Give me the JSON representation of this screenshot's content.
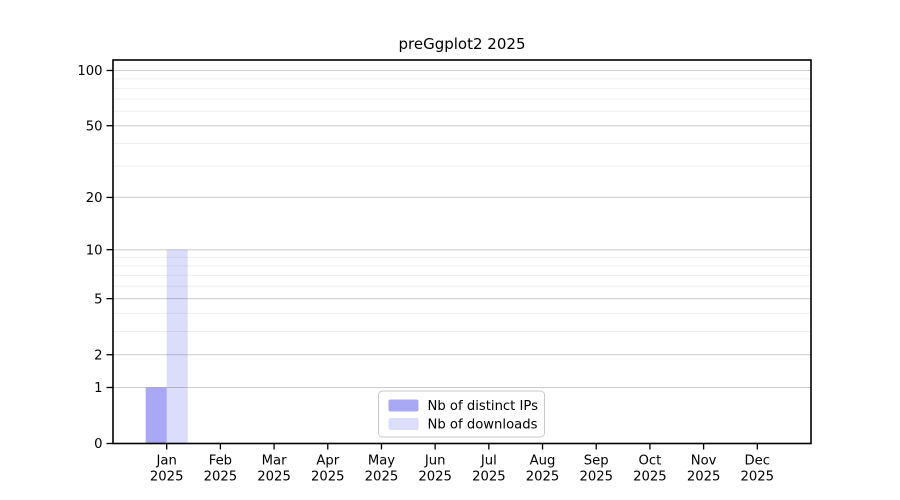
{
  "chart_data": {
    "type": "bar",
    "title": "preGgplot2 2025",
    "categories": [
      "Jan",
      "Feb",
      "Mar",
      "Apr",
      "May",
      "Jun",
      "Jul",
      "Aug",
      "Sep",
      "Oct",
      "Nov",
      "Dec"
    ],
    "category_year": "2025",
    "series": [
      {
        "name": "Nb of distinct IPs",
        "color": "#a8a8f3",
        "fill": "rgba(30,30,230,0.39)",
        "values": [
          1,
          0,
          0,
          0,
          0,
          0,
          0,
          0,
          0,
          0,
          0,
          0
        ]
      },
      {
        "name": "Nb of downloads",
        "color": "#dcdcf9",
        "fill": "rgba(30,30,230,0.155)",
        "values": [
          10,
          0,
          0,
          0,
          0,
          0,
          0,
          0,
          0,
          0,
          0,
          0
        ]
      }
    ],
    "yscale": "log1p",
    "ylim": [
      0,
      114
    ],
    "y_major_ticks": [
      0,
      1,
      2,
      5,
      10,
      20,
      50,
      100
    ],
    "y_minor_gridlines": [
      3,
      4,
      6,
      7,
      8,
      9,
      30,
      40,
      60,
      70,
      80,
      90
    ],
    "xlabel": "",
    "ylabel": "",
    "grid": true,
    "legend": {
      "position": "bottom-center",
      "entries": [
        "Nb of distinct IPs",
        "Nb of downloads"
      ]
    }
  },
  "colors": {
    "background": "#ffffff",
    "axis": "#000000",
    "text": "#000000",
    "grid_major": "#cccccc",
    "grid_minor": "#efefef",
    "legend_border": "#c9c9c9",
    "legend_bg": "#ffffff"
  }
}
